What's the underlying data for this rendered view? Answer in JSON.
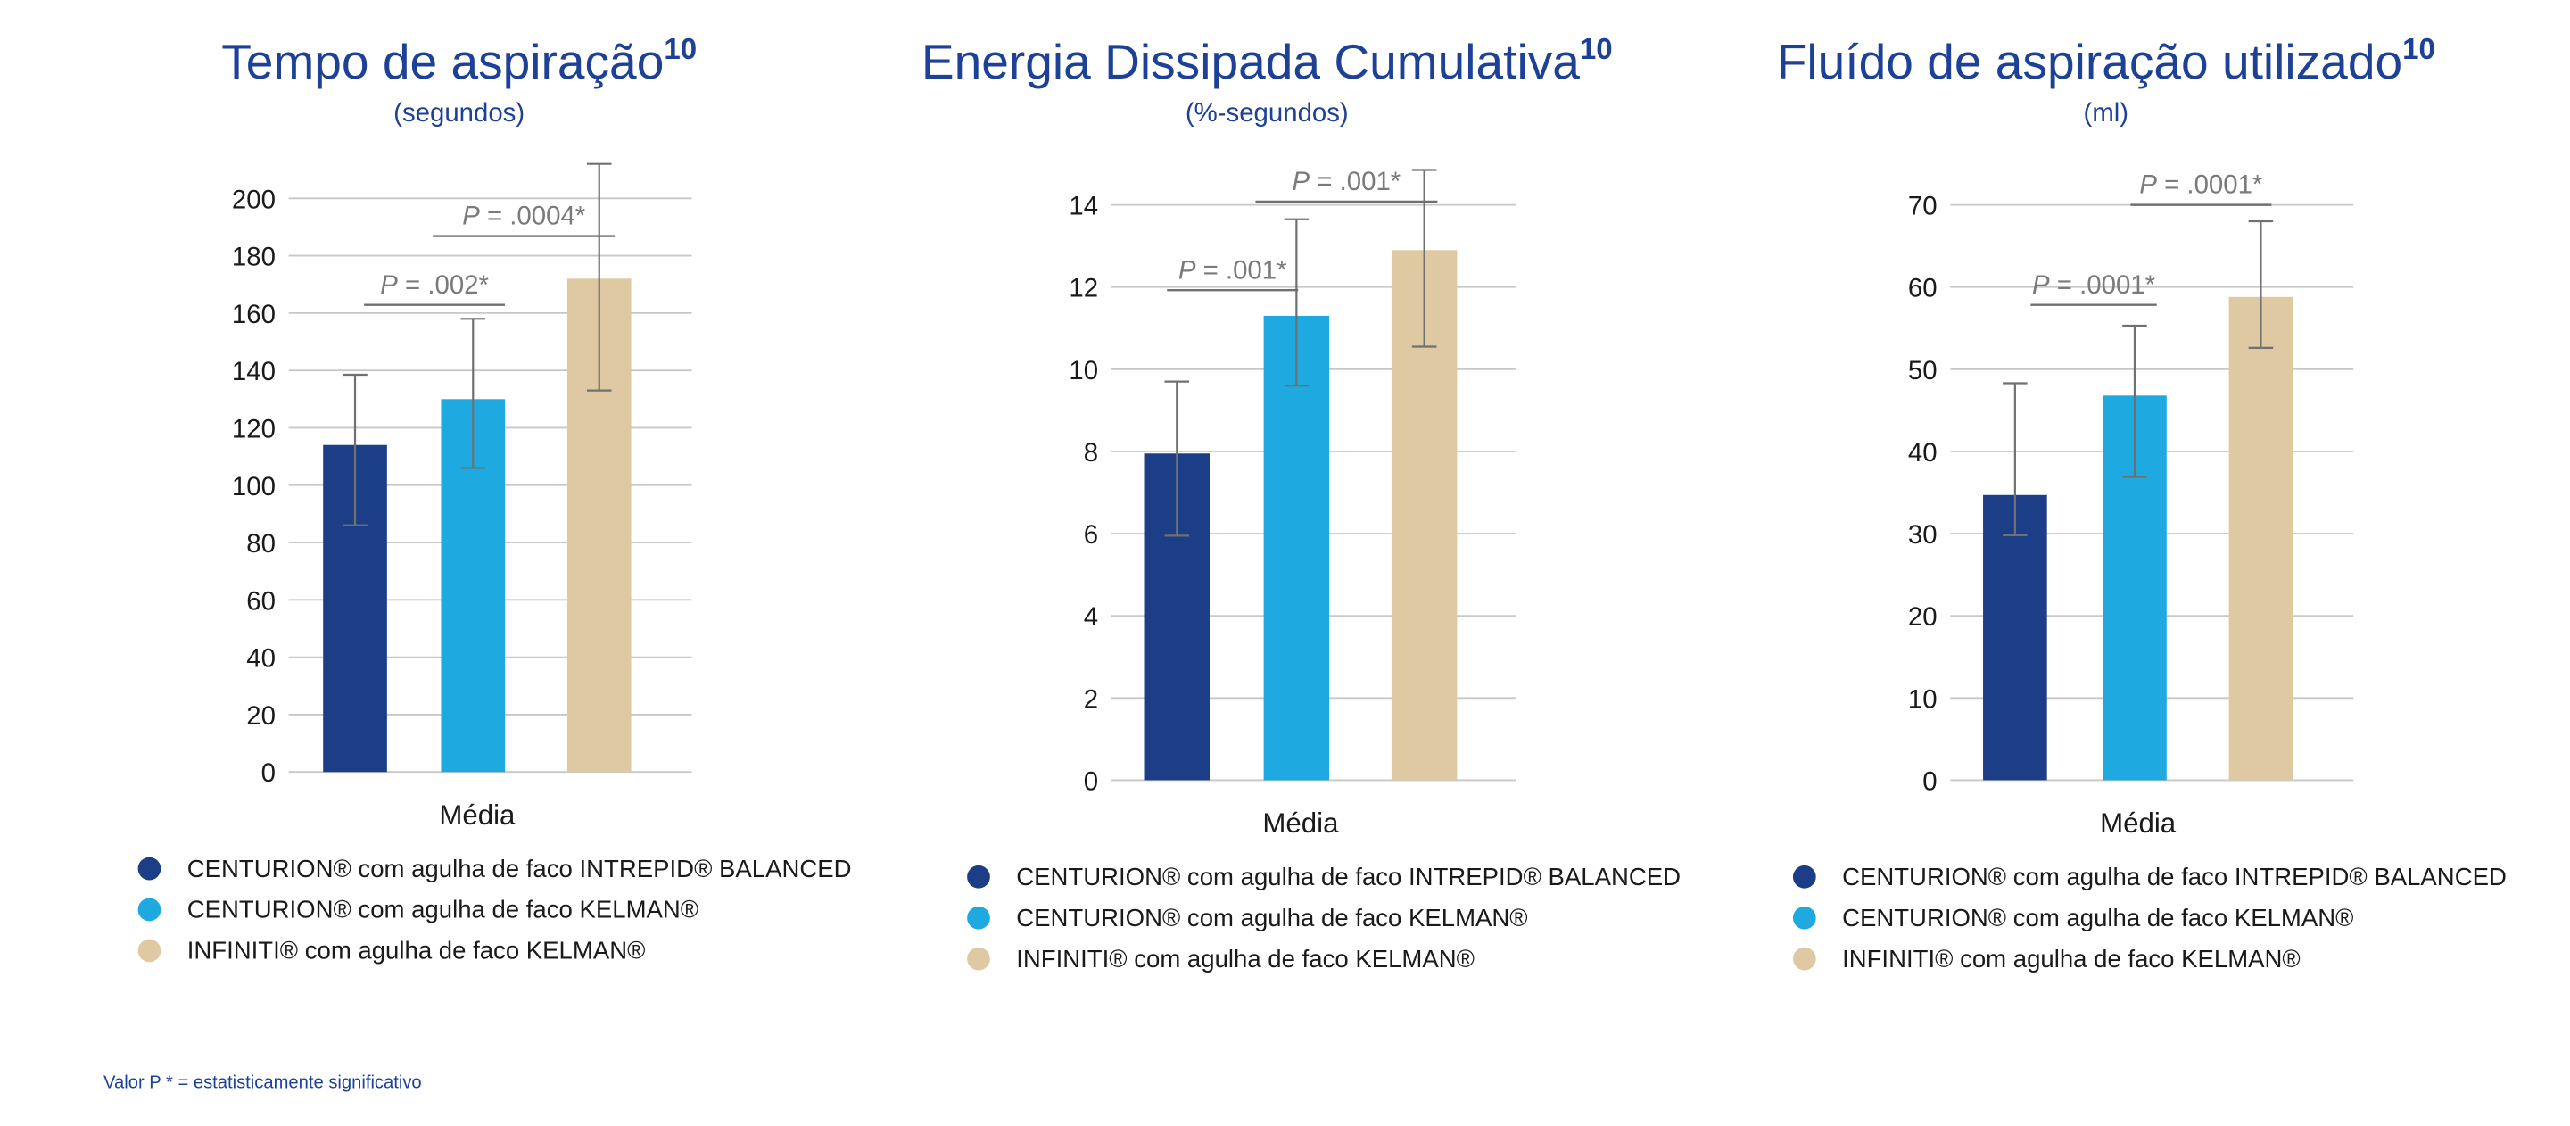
{
  "footnote": "Valor P * = estatisticamente significativo",
  "colors": {
    "series1": "#1b3e87",
    "series2": "#1eaae1",
    "series3": "#dfc9a2",
    "title": "#1d4196"
  },
  "chart_data": [
    {
      "type": "bar",
      "title": "Tempo de aspiração",
      "title_sup": "10",
      "subtitle": "(segundos)",
      "xlabel": "Média",
      "ylim": [
        0,
        200
      ],
      "yticks": [
        0,
        20,
        40,
        60,
        80,
        100,
        120,
        140,
        160,
        180,
        200
      ],
      "grid": true,
      "legend_position": "bottom",
      "series": [
        {
          "name": "CENTURION® com agulha de faco INTREPID® BALANCED",
          "value": 114,
          "err_low": 86,
          "err_high": 138.5
        },
        {
          "name": "CENTURION® com agulha de faco KELMAN®",
          "value": 130,
          "err_low": 106,
          "err_high": 158
        },
        {
          "name": "INFINITI® com agulha de faco KELMAN®",
          "value": 172,
          "err_low": 133,
          "err_high": 212
        }
      ],
      "annotations": [
        {
          "label": "P",
          "text": " = .002*",
          "from": 0,
          "to": 1
        },
        {
          "label": "P",
          "text": " = .0004*",
          "from": 1,
          "to": 2
        }
      ]
    },
    {
      "type": "bar",
      "title": "Energia Dissipada Cumulativa",
      "title_sup": "10",
      "subtitle": "(%-segundos)",
      "xlabel": "Média",
      "ylim": [
        0,
        14
      ],
      "yticks": [
        0,
        2,
        4,
        6,
        8,
        10,
        12,
        14
      ],
      "grid": true,
      "legend_position": "bottom",
      "series": [
        {
          "name": "CENTURION® com agulha de faco INTREPID® BALANCED",
          "value": 7.95,
          "err_low": 5.95,
          "err_high": 9.7
        },
        {
          "name": "CENTURION® com agulha de faco KELMAN®",
          "value": 11.3,
          "err_low": 9.6,
          "err_high": 13.65
        },
        {
          "name": "INFINITI® com agulha de faco KELMAN®",
          "value": 12.9,
          "err_low": 10.55,
          "err_high": 14.85
        }
      ],
      "annotations": [
        {
          "label": "P",
          "text": " = .001*",
          "from": 0,
          "to": 1
        },
        {
          "label": "P",
          "text": " = .001*",
          "from": 1,
          "to": 2
        }
      ]
    },
    {
      "type": "bar",
      "title": "Fluído de aspiração utilizado",
      "title_sup": "10",
      "subtitle": "(ml)",
      "xlabel": "Média",
      "ylim": [
        0,
        70
      ],
      "yticks": [
        0,
        10,
        20,
        30,
        40,
        50,
        60,
        70
      ],
      "grid": true,
      "legend_position": "bottom",
      "series": [
        {
          "name": "CENTURION® com agulha de faco INTREPID® BALANCED",
          "value": 34.7,
          "err_low": 29.8,
          "err_high": 48.3
        },
        {
          "name": "CENTURION® com agulha de faco KELMAN®",
          "value": 46.8,
          "err_low": 36.9,
          "err_high": 55.3
        },
        {
          "name": "INFINITI® com agulha de faco KELMAN®",
          "value": 58.8,
          "err_low": 52.6,
          "err_high": 68
        }
      ],
      "annotations": [
        {
          "label": "P",
          "text": " = .0001*",
          "from": 0,
          "to": 1
        },
        {
          "label": "P",
          "text": " = .0001*",
          "from": 1,
          "to": 2
        }
      ]
    }
  ]
}
